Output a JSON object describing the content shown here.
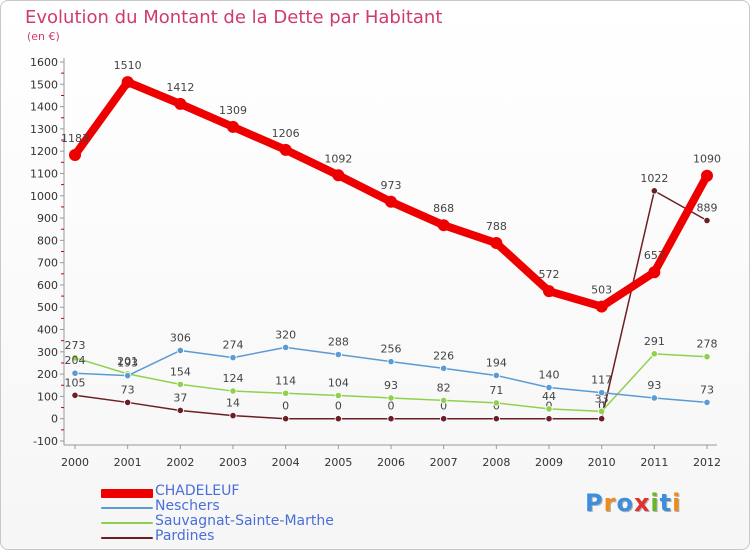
{
  "title": "Evolution du Montant de la Dette par Habitant",
  "subtitle": "(en €)",
  "logo_text": "Proxiti",
  "logo_colors": [
    "#3e8ede",
    "#f08a1c",
    "#3e8ede",
    "#e0312f",
    "#6bb52e",
    "#3e8ede",
    "#f08a1c"
  ],
  "chart_data": {
    "type": "line",
    "x": [
      "2000",
      "2001",
      "2002",
      "2003",
      "2004",
      "2005",
      "2006",
      "2007",
      "2008",
      "2009",
      "2010",
      "2011",
      "2012"
    ],
    "ylim": [
      -100,
      1600
    ],
    "yticks": [
      -100,
      0,
      100,
      200,
      300,
      400,
      500,
      600,
      700,
      800,
      900,
      1000,
      1100,
      1200,
      1300,
      1400,
      1500,
      1600
    ],
    "grid": false,
    "legend_position": "bottom-left",
    "series": [
      {
        "name": "CHADELEUF",
        "color": "#ee0000",
        "emphasis": true,
        "values": [
          1183,
          1510,
          1412,
          1309,
          1206,
          1092,
          973,
          868,
          788,
          572,
          503,
          657,
          1090
        ],
        "labels": [
          "1183",
          "1510",
          "1412",
          "1309",
          "1206",
          "1092",
          "973",
          "868",
          "788",
          "572",
          "503",
          "657",
          "1090"
        ]
      },
      {
        "name": "Neschers",
        "color": "#5b9bd5",
        "values": [
          204,
          193,
          306,
          274,
          320,
          288,
          256,
          226,
          194,
          140,
          117,
          93,
          73
        ],
        "labels": [
          "204",
          "193",
          "306",
          "274",
          "320",
          "288",
          "256",
          "226",
          "194",
          "140",
          "117",
          "93",
          "73"
        ]
      },
      {
        "name": "Sauvagnat-Sainte-Marthe",
        "color": "#8fd14f",
        "values": [
          273,
          201,
          154,
          124,
          114,
          104,
          93,
          82,
          71,
          44,
          33,
          291,
          278
        ],
        "labels": [
          "273",
          "201",
          "154",
          "124",
          "114",
          "104",
          "93",
          "82",
          "71",
          "44",
          "33",
          "291",
          "278"
        ]
      },
      {
        "name": "Pardines",
        "color": "#6b1f24",
        "values": [
          105,
          73,
          37,
          14,
          0,
          0,
          0,
          0,
          0,
          0,
          0,
          1022,
          889
        ],
        "labels": [
          "105",
          "73",
          "37",
          "14",
          "0",
          "0",
          "0",
          "0",
          "0",
          "0",
          "0",
          "1022",
          "889"
        ]
      }
    ]
  }
}
